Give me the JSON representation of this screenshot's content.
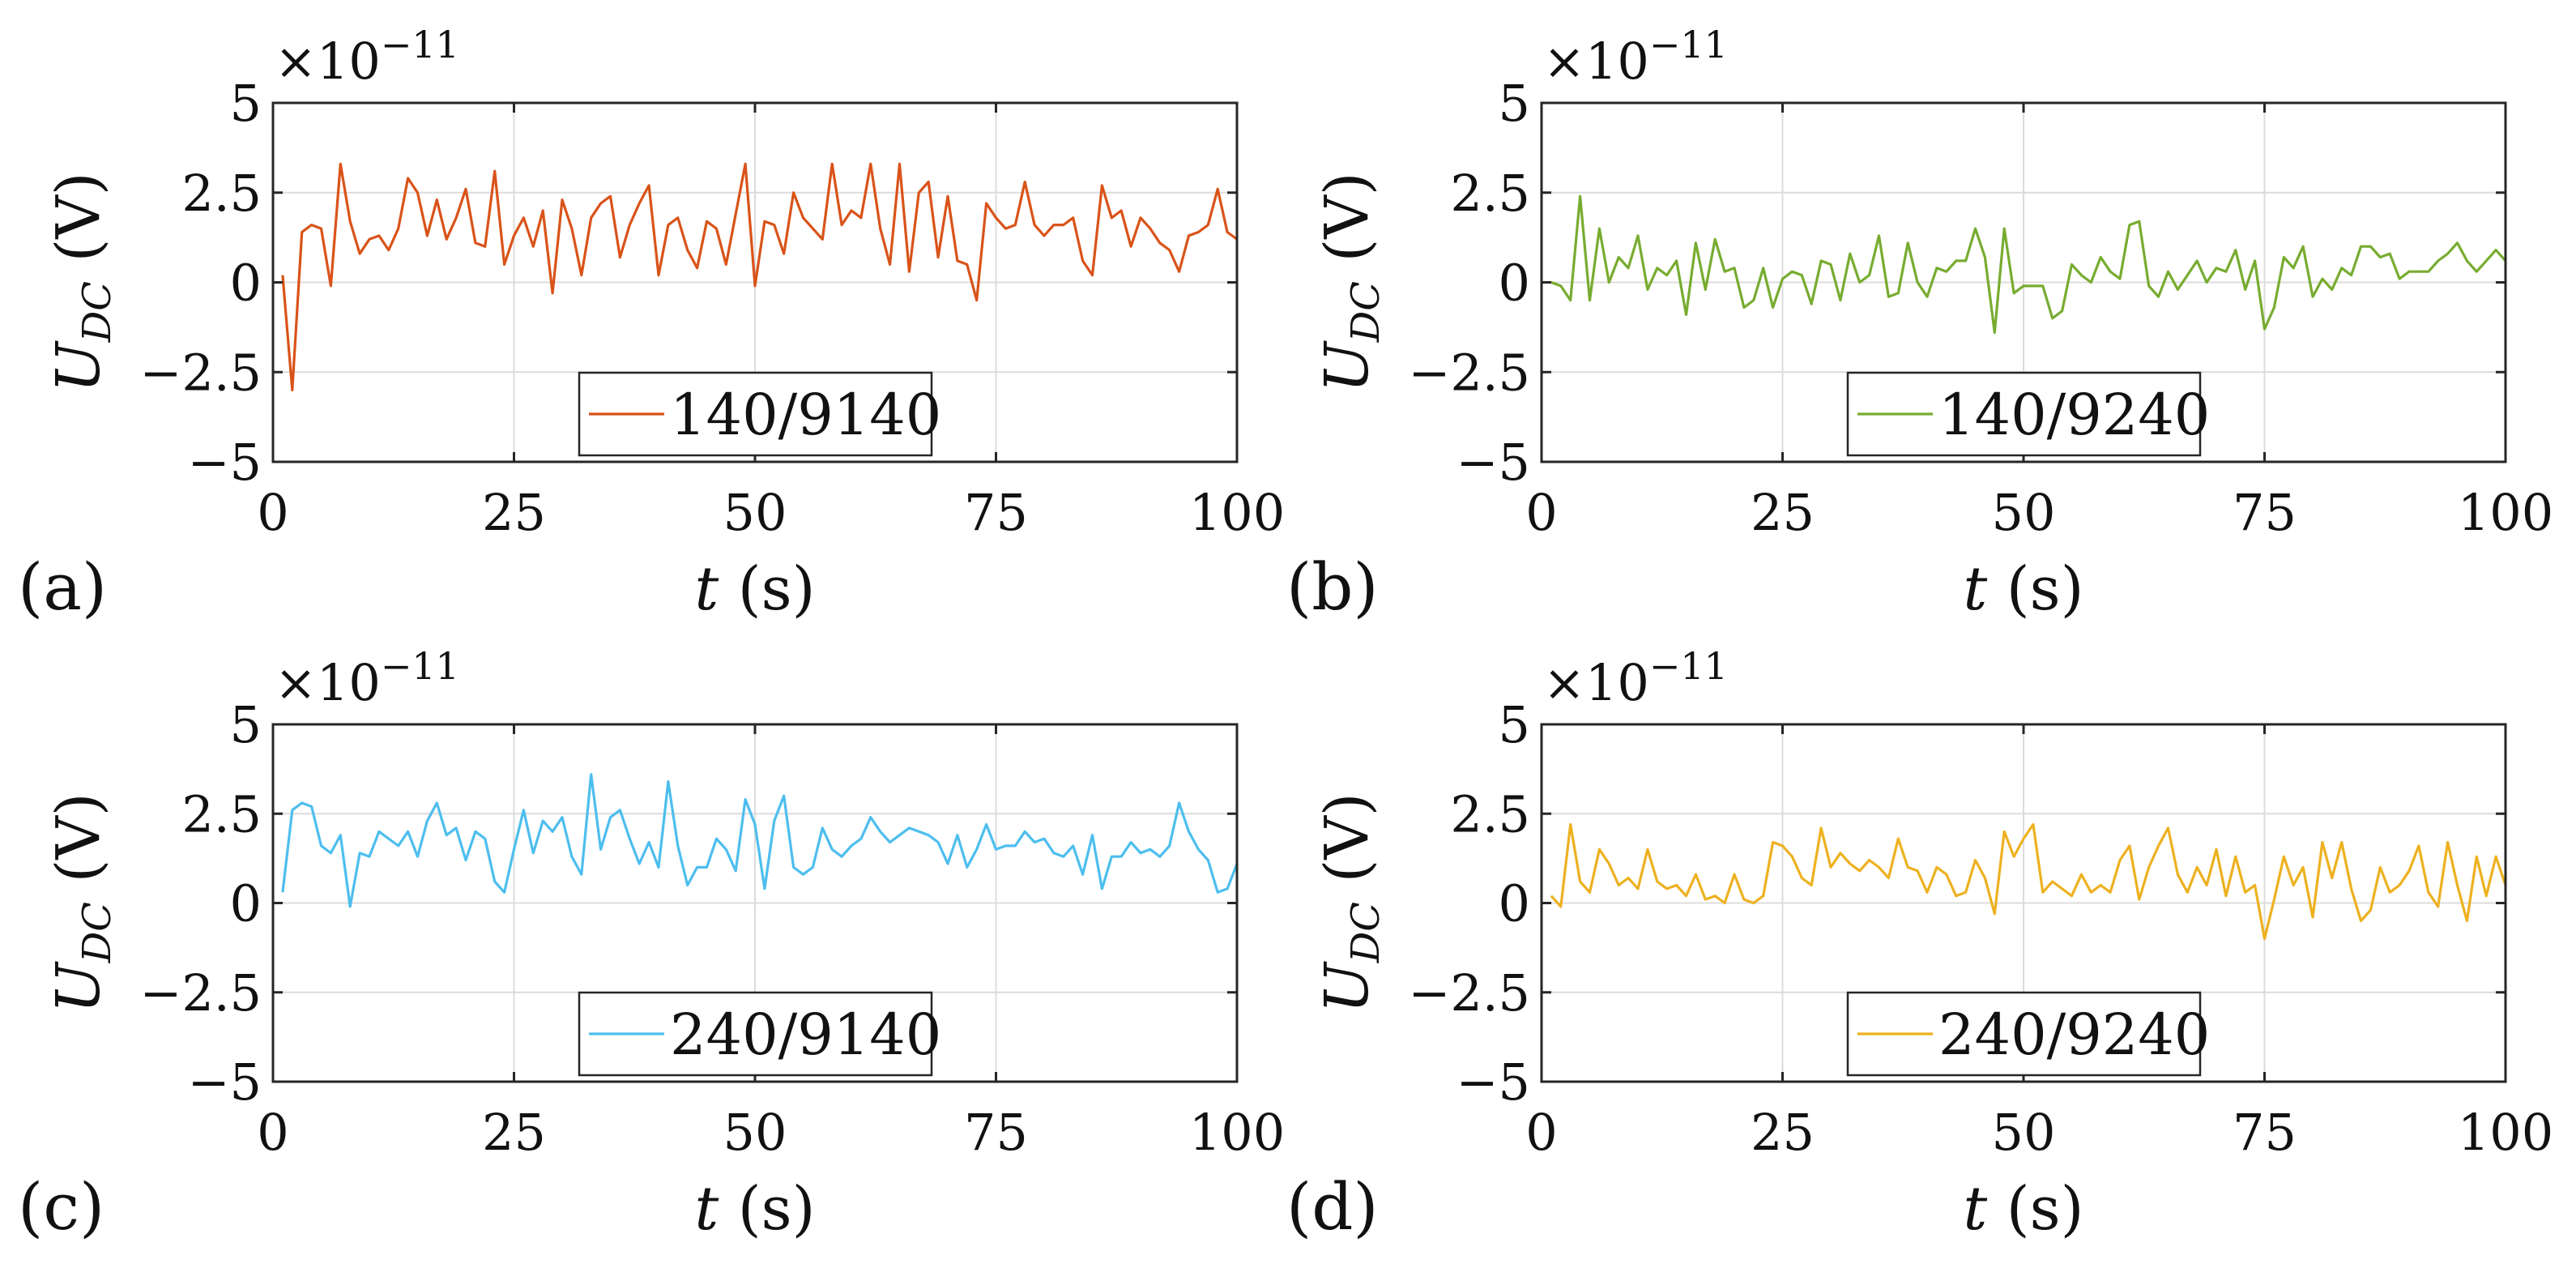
{
  "chart_data": [
    {
      "type": "line",
      "panel_label": "(a)",
      "multiplier": "×10",
      "exponent": "−11",
      "xlabel_var": "t",
      "xlabel_unit": "(s)",
      "ylabel_var": "U",
      "ylabel_sub": "DC",
      "ylabel_unit": "(V)",
      "xlim": [
        0,
        100
      ],
      "ylim": [
        -5,
        5
      ],
      "xticks": [
        0,
        25,
        50,
        75,
        100
      ],
      "xtick_labels": [
        "0",
        "25",
        "50",
        "75",
        "100"
      ],
      "yticks": [
        5,
        2.5,
        0,
        -2.5,
        -5
      ],
      "ytick_labels": [
        "5",
        "2.5",
        "0",
        "−2.5",
        "−5"
      ],
      "grid": true,
      "legend_position": "lower-center",
      "series": [
        {
          "name": "140/9140",
          "color": "#d95319",
          "x": [
            1,
            2,
            3,
            4,
            5,
            6,
            7,
            8,
            9,
            10,
            11,
            12,
            13,
            14,
            15,
            16,
            17,
            18,
            19,
            20,
            21,
            22,
            23,
            24,
            25,
            26,
            27,
            28,
            29,
            30,
            31,
            32,
            33,
            34,
            35,
            36,
            37,
            38,
            39,
            40,
            41,
            42,
            43,
            44,
            45,
            46,
            47,
            48,
            49,
            50,
            51,
            52,
            53,
            54,
            55,
            56,
            57,
            58,
            59,
            60,
            61,
            62,
            63,
            64,
            65,
            66,
            67,
            68,
            69,
            70,
            71,
            72,
            73,
            74,
            75,
            76,
            77,
            78,
            79,
            80,
            81,
            82,
            83,
            84,
            85,
            86,
            87,
            88,
            89,
            90,
            91,
            92,
            93,
            94,
            95,
            96,
            97,
            98,
            99,
            100
          ],
          "y": [
            0.2,
            -3.0,
            1.4,
            1.6,
            1.5,
            -0.1,
            3.3,
            1.7,
            0.8,
            1.2,
            1.3,
            0.9,
            1.5,
            2.9,
            2.5,
            1.3,
            2.3,
            1.2,
            1.8,
            2.6,
            1.1,
            1.0,
            3.1,
            0.5,
            1.3,
            1.8,
            1.0,
            2.0,
            -0.3,
            2.3,
            1.5,
            0.2,
            1.8,
            2.2,
            2.4,
            0.7,
            1.6,
            2.2,
            2.7,
            0.2,
            1.6,
            1.8,
            0.9,
            0.4,
            1.7,
            1.5,
            0.5,
            1.9,
            3.3,
            -0.1,
            1.7,
            1.6,
            0.8,
            2.5,
            1.8,
            1.5,
            1.2,
            3.3,
            1.6,
            2.0,
            1.8,
            3.3,
            1.5,
            0.5,
            3.3,
            0.3,
            2.5,
            2.8,
            0.7,
            2.4,
            0.6,
            0.5,
            -0.5,
            2.2,
            1.8,
            1.5,
            1.6,
            2.8,
            1.6,
            1.3,
            1.6,
            1.6,
            1.8,
            0.6,
            0.2,
            2.7,
            1.8,
            2.0,
            1.0,
            1.8,
            1.5,
            1.1,
            0.9,
            0.3,
            1.3,
            1.4,
            1.6,
            2.6,
            1.4,
            1.2
          ]
        }
      ]
    },
    {
      "type": "line",
      "panel_label": "(b)",
      "multiplier": "×10",
      "exponent": "−11",
      "xlabel_var": "t",
      "xlabel_unit": "(s)",
      "ylabel_var": "U",
      "ylabel_sub": "DC",
      "ylabel_unit": "(V)",
      "xlim": [
        0,
        100
      ],
      "ylim": [
        -5,
        5
      ],
      "xticks": [
        0,
        25,
        50,
        75,
        100
      ],
      "xtick_labels": [
        "0",
        "25",
        "50",
        "75",
        "100"
      ],
      "yticks": [
        5,
        2.5,
        0,
        -2.5,
        -5
      ],
      "ytick_labels": [
        "5",
        "2.5",
        "0",
        "−2.5",
        "−5"
      ],
      "grid": true,
      "legend_position": "lower-center",
      "series": [
        {
          "name": "140/9240",
          "color": "#77ac30",
          "x": [
            1,
            2,
            3,
            4,
            5,
            6,
            7,
            8,
            9,
            10,
            11,
            12,
            13,
            14,
            15,
            16,
            17,
            18,
            19,
            20,
            21,
            22,
            23,
            24,
            25,
            26,
            27,
            28,
            29,
            30,
            31,
            32,
            33,
            34,
            35,
            36,
            37,
            38,
            39,
            40,
            41,
            42,
            43,
            44,
            45,
            46,
            47,
            48,
            49,
            50,
            51,
            52,
            53,
            54,
            55,
            56,
            57,
            58,
            59,
            60,
            61,
            62,
            63,
            64,
            65,
            66,
            67,
            68,
            69,
            70,
            71,
            72,
            73,
            74,
            75,
            76,
            77,
            78,
            79,
            80,
            81,
            82,
            83,
            84,
            85,
            86,
            87,
            88,
            89,
            90,
            91,
            92,
            93,
            94,
            95,
            96,
            97,
            98,
            99,
            100
          ],
          "y": [
            0.0,
            -0.1,
            -0.5,
            2.4,
            -0.5,
            1.5,
            0.0,
            0.7,
            0.4,
            1.3,
            -0.2,
            0.4,
            0.2,
            0.6,
            -0.9,
            1.1,
            -0.2,
            1.2,
            0.3,
            0.4,
            -0.7,
            -0.5,
            0.4,
            -0.7,
            0.1,
            0.3,
            0.2,
            -0.6,
            0.6,
            0.5,
            -0.5,
            0.8,
            0.0,
            0.2,
            1.3,
            -0.4,
            -0.3,
            1.1,
            0.0,
            -0.4,
            0.4,
            0.3,
            0.6,
            0.6,
            1.5,
            0.7,
            -1.4,
            1.5,
            -0.3,
            -0.1,
            -0.1,
            -0.1,
            -1.0,
            -0.8,
            0.5,
            0.2,
            0.0,
            0.7,
            0.3,
            0.1,
            1.6,
            1.7,
            -0.1,
            -0.4,
            0.3,
            -0.2,
            0.2,
            0.6,
            0.0,
            0.4,
            0.3,
            0.9,
            -0.2,
            0.6,
            -1.3,
            -0.7,
            0.7,
            0.4,
            1.0,
            -0.4,
            0.1,
            -0.2,
            0.4,
            0.2,
            1.0,
            1.0,
            0.7,
            0.8,
            0.1,
            0.3,
            0.3,
            0.3,
            0.6,
            0.8,
            1.1,
            0.6,
            0.3,
            0.6,
            0.9,
            0.6
          ]
        }
      ]
    },
    {
      "type": "line",
      "panel_label": "(c)",
      "multiplier": "×10",
      "exponent": "−11",
      "xlabel_var": "t",
      "xlabel_unit": "(s)",
      "ylabel_var": "U",
      "ylabel_sub": "DC",
      "ylabel_unit": "(V)",
      "xlim": [
        0,
        100
      ],
      "ylim": [
        -5,
        5
      ],
      "xticks": [
        0,
        25,
        50,
        75,
        100
      ],
      "xtick_labels": [
        "0",
        "25",
        "50",
        "75",
        "100"
      ],
      "yticks": [
        5,
        2.5,
        0,
        -2.5,
        -5
      ],
      "ytick_labels": [
        "5",
        "2.5",
        "0",
        "−2.5",
        "−5"
      ],
      "grid": true,
      "legend_position": "lower-center",
      "series": [
        {
          "name": "240/9140",
          "color": "#4dbeee",
          "x": [
            1,
            2,
            3,
            4,
            5,
            6,
            7,
            8,
            9,
            10,
            11,
            12,
            13,
            14,
            15,
            16,
            17,
            18,
            19,
            20,
            21,
            22,
            23,
            24,
            25,
            26,
            27,
            28,
            29,
            30,
            31,
            32,
            33,
            34,
            35,
            36,
            37,
            38,
            39,
            40,
            41,
            42,
            43,
            44,
            45,
            46,
            47,
            48,
            49,
            50,
            51,
            52,
            53,
            54,
            55,
            56,
            57,
            58,
            59,
            60,
            61,
            62,
            63,
            64,
            65,
            66,
            67,
            68,
            69,
            70,
            71,
            72,
            73,
            74,
            75,
            76,
            77,
            78,
            79,
            80,
            81,
            82,
            83,
            84,
            85,
            86,
            87,
            88,
            89,
            90,
            91,
            92,
            93,
            94,
            95,
            96,
            97,
            98,
            99,
            100
          ],
          "y": [
            0.3,
            2.6,
            2.8,
            2.7,
            1.6,
            1.4,
            1.9,
            -0.1,
            1.4,
            1.3,
            2.0,
            1.8,
            1.6,
            2.0,
            1.3,
            2.3,
            2.8,
            1.9,
            2.1,
            1.2,
            2.0,
            1.8,
            0.6,
            0.3,
            1.5,
            2.6,
            1.4,
            2.3,
            2.0,
            2.4,
            1.3,
            0.8,
            3.6,
            1.5,
            2.4,
            2.6,
            1.8,
            1.1,
            1.7,
            1.0,
            3.4,
            1.6,
            0.5,
            1.0,
            1.0,
            1.8,
            1.5,
            0.9,
            2.9,
            2.2,
            0.4,
            2.3,
            3.0,
            1.0,
            0.8,
            1.0,
            2.1,
            1.5,
            1.3,
            1.6,
            1.8,
            2.4,
            2.0,
            1.7,
            1.9,
            2.1,
            2.0,
            1.9,
            1.7,
            1.1,
            1.9,
            1.0,
            1.5,
            2.2,
            1.5,
            1.6,
            1.6,
            2.0,
            1.7,
            1.8,
            1.4,
            1.3,
            1.6,
            0.8,
            1.9,
            0.4,
            1.3,
            1.3,
            1.7,
            1.4,
            1.5,
            1.3,
            1.6,
            2.8,
            2.0,
            1.5,
            1.2,
            0.3,
            0.4,
            1.1
          ]
        }
      ]
    },
    {
      "type": "line",
      "panel_label": "(d)",
      "multiplier": "×10",
      "exponent": "−11",
      "xlabel_var": "t",
      "xlabel_unit": "(s)",
      "ylabel_var": "U",
      "ylabel_sub": "DC",
      "ylabel_unit": "(V)",
      "xlim": [
        0,
        100
      ],
      "ylim": [
        -5,
        5
      ],
      "xticks": [
        0,
        25,
        50,
        75,
        100
      ],
      "xtick_labels": [
        "0",
        "25",
        "50",
        "75",
        "100"
      ],
      "yticks": [
        5,
        2.5,
        0,
        -2.5,
        -5
      ],
      "ytick_labels": [
        "5",
        "2.5",
        "0",
        "−2.5",
        "−5"
      ],
      "grid": true,
      "legend_position": "lower-center",
      "series": [
        {
          "name": "240/9240",
          "color": "#edb120",
          "x": [
            1,
            2,
            3,
            4,
            5,
            6,
            7,
            8,
            9,
            10,
            11,
            12,
            13,
            14,
            15,
            16,
            17,
            18,
            19,
            20,
            21,
            22,
            23,
            24,
            25,
            26,
            27,
            28,
            29,
            30,
            31,
            32,
            33,
            34,
            35,
            36,
            37,
            38,
            39,
            40,
            41,
            42,
            43,
            44,
            45,
            46,
            47,
            48,
            49,
            50,
            51,
            52,
            53,
            54,
            55,
            56,
            57,
            58,
            59,
            60,
            61,
            62,
            63,
            64,
            65,
            66,
            67,
            68,
            69,
            70,
            71,
            72,
            73,
            74,
            75,
            76,
            77,
            78,
            79,
            80,
            81,
            82,
            83,
            84,
            85,
            86,
            87,
            88,
            89,
            90,
            91,
            92,
            93,
            94,
            95,
            96,
            97,
            98,
            99,
            100
          ],
          "y": [
            0.2,
            -0.1,
            2.2,
            0.6,
            0.3,
            1.5,
            1.1,
            0.5,
            0.7,
            0.4,
            1.5,
            0.6,
            0.4,
            0.5,
            0.2,
            0.8,
            0.1,
            0.2,
            0.0,
            0.8,
            0.1,
            0.0,
            0.2,
            1.7,
            1.6,
            1.3,
            0.7,
            0.5,
            2.1,
            1.0,
            1.4,
            1.1,
            0.9,
            1.2,
            1.0,
            0.7,
            1.8,
            1.0,
            0.9,
            0.3,
            1.0,
            0.8,
            0.2,
            0.3,
            1.2,
            0.7,
            -0.3,
            2.0,
            1.3,
            1.8,
            2.2,
            0.3,
            0.6,
            0.4,
            0.2,
            0.8,
            0.3,
            0.5,
            0.3,
            1.2,
            1.6,
            0.1,
            1.0,
            1.6,
            2.1,
            0.8,
            0.3,
            1.0,
            0.5,
            1.5,
            0.2,
            1.3,
            0.3,
            0.5,
            -1.0,
            0.1,
            1.3,
            0.5,
            1.0,
            -0.4,
            1.7,
            0.7,
            1.7,
            0.4,
            -0.5,
            -0.2,
            1.0,
            0.3,
            0.5,
            0.9,
            1.6,
            0.3,
            -0.1,
            1.7,
            0.5,
            -0.5,
            1.3,
            0.2,
            1.3,
            0.5
          ]
        }
      ]
    }
  ]
}
